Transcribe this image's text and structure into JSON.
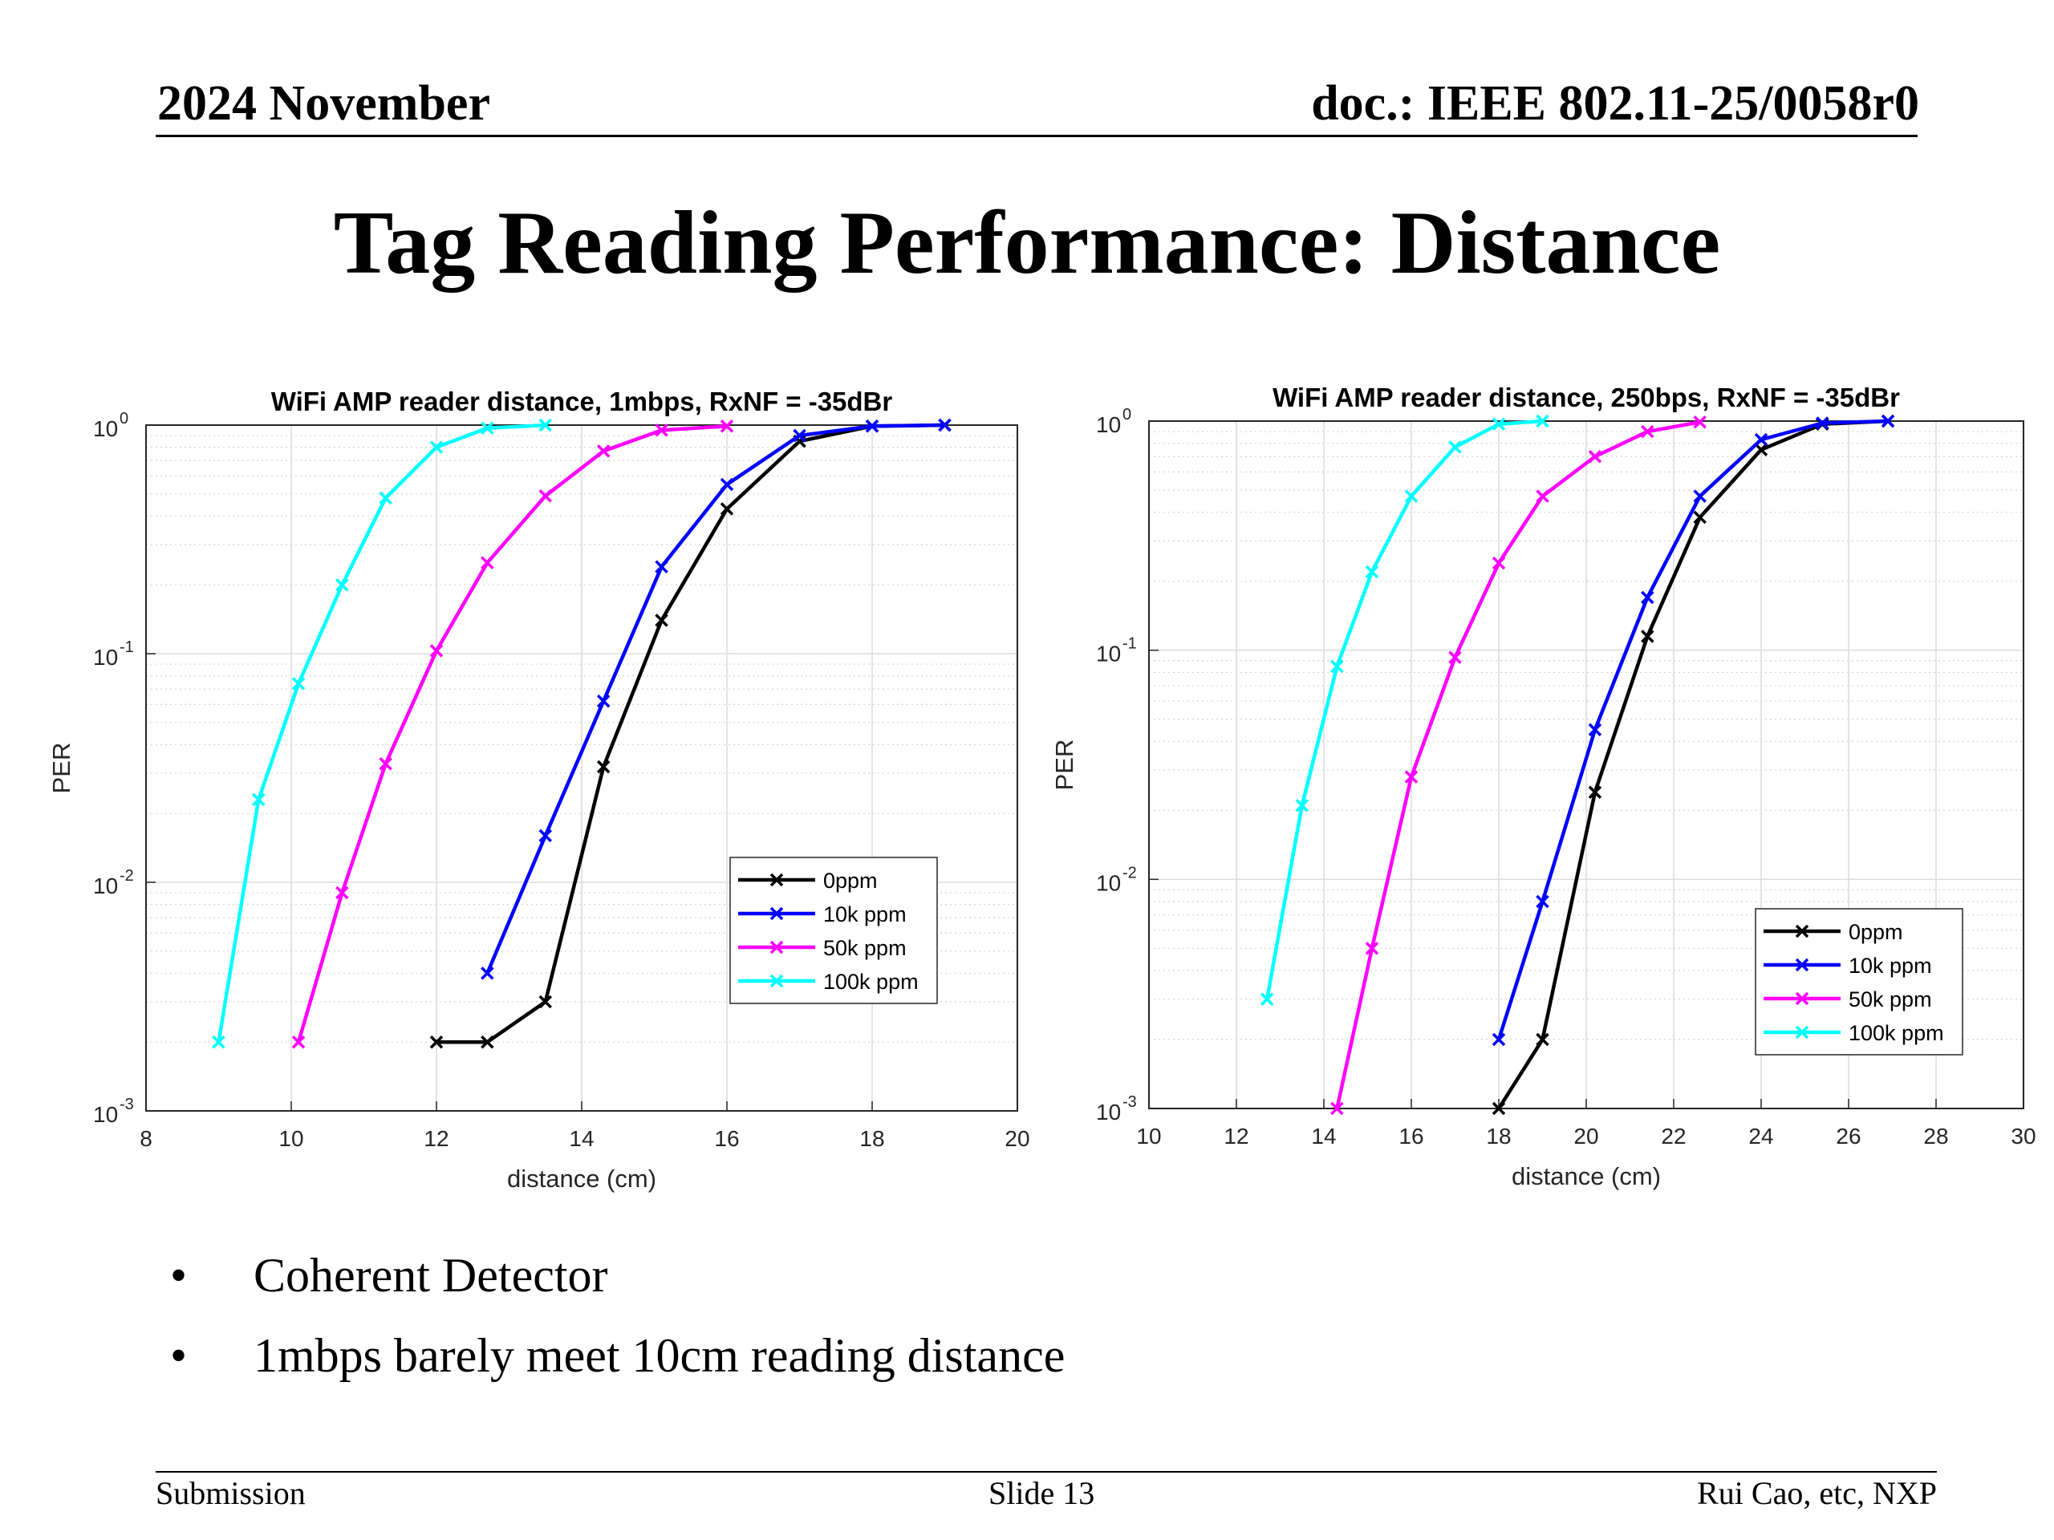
{
  "header": {
    "date": "2024 November",
    "doc": "doc.: IEEE 802.11-25/0058r0"
  },
  "title": "Tag Reading Performance: Distance",
  "chart_data": [
    {
      "type": "line",
      "title": "WiFi AMP reader distance, 1mbps, RxNF = -35dBr",
      "xlabel": "distance (cm)",
      "ylabel": "PER",
      "xlim": [
        8,
        20
      ],
      "ylim": [
        0.001,
        1
      ],
      "yscale": "log",
      "grid": true,
      "legend_position": "lower-right",
      "xticks": [
        "8",
        "10",
        "12",
        "14",
        "16",
        "18",
        "20"
      ],
      "yticks": [
        {
          "base": "10",
          "exp": "0"
        },
        {
          "base": "10",
          "exp": "-1"
        },
        {
          "base": "10",
          "exp": "-2"
        },
        {
          "base": "10",
          "exp": "-3"
        }
      ],
      "series": [
        {
          "name": "0ppm",
          "color": "#000000",
          "x": [
            12.0,
            12.7,
            13.5,
            14.3,
            15.1,
            16.0,
            17.0,
            18.0,
            19.0
          ],
          "y": [
            0.002,
            0.002,
            0.003,
            0.032,
            0.14,
            0.43,
            0.85,
            0.99,
            1.0
          ]
        },
        {
          "name": "10k ppm",
          "color": "#0000ff",
          "x": [
            12.7,
            13.5,
            14.3,
            15.1,
            16.0,
            17.0,
            18.0,
            19.0
          ],
          "y": [
            0.004,
            0.016,
            0.062,
            0.24,
            0.55,
            0.9,
            0.99,
            1.0
          ]
        },
        {
          "name": "50k ppm",
          "color": "#ff00ff",
          "x": [
            10.1,
            10.7,
            11.3,
            12.0,
            12.7,
            13.5,
            14.3,
            15.1,
            16.0
          ],
          "y": [
            0.002,
            0.009,
            0.033,
            0.103,
            0.25,
            0.49,
            0.77,
            0.95,
            0.99
          ]
        },
        {
          "name": "100k ppm",
          "color": "#00ffff",
          "x": [
            9.0,
            9.55,
            10.1,
            10.7,
            11.3,
            12.0,
            12.7,
            13.5
          ],
          "y": [
            0.002,
            0.023,
            0.074,
            0.2,
            0.48,
            0.8,
            0.97,
            1.0
          ]
        }
      ]
    },
    {
      "type": "line",
      "title": "WiFi AMP reader distance, 250bps, RxNF = -35dBr",
      "xlabel": "distance (cm)",
      "ylabel": "PER",
      "xlim": [
        10,
        30
      ],
      "ylim": [
        0.001,
        1
      ],
      "yscale": "log",
      "grid": true,
      "legend_position": "lower-right",
      "xticks": [
        "10",
        "12",
        "14",
        "16",
        "18",
        "20",
        "22",
        "24",
        "26",
        "28",
        "30"
      ],
      "yticks": [
        {
          "base": "10",
          "exp": "0"
        },
        {
          "base": "10",
          "exp": "-1"
        },
        {
          "base": "10",
          "exp": "-2"
        },
        {
          "base": "10",
          "exp": "-3"
        }
      ],
      "series": [
        {
          "name": "0ppm",
          "color": "#000000",
          "x": [
            18.0,
            19.0,
            20.2,
            21.4,
            22.6,
            24.0,
            25.4,
            26.9
          ],
          "y": [
            0.001,
            0.002,
            0.024,
            0.115,
            0.38,
            0.75,
            0.97,
            1.0
          ]
        },
        {
          "name": "10k ppm",
          "color": "#0000ff",
          "x": [
            18.0,
            19.0,
            20.2,
            21.4,
            22.6,
            24.0,
            25.4,
            26.9
          ],
          "y": [
            0.002,
            0.008,
            0.045,
            0.17,
            0.47,
            0.83,
            0.98,
            1.0
          ]
        },
        {
          "name": "50k ppm",
          "color": "#ff00ff",
          "x": [
            14.3,
            15.1,
            16.0,
            17.0,
            18.0,
            19.0,
            20.2,
            21.4,
            22.6
          ],
          "y": [
            0.001,
            0.005,
            0.028,
            0.093,
            0.24,
            0.47,
            0.7,
            0.9,
            0.99
          ]
        },
        {
          "name": "100k ppm",
          "color": "#00ffff",
          "x": [
            12.7,
            13.5,
            14.3,
            15.1,
            16.0,
            17.0,
            18.0,
            19.0
          ],
          "y": [
            0.003,
            0.021,
            0.085,
            0.22,
            0.47,
            0.77,
            0.97,
            1.0
          ]
        }
      ]
    }
  ],
  "bullets": [
    {
      "symbol": "•",
      "text": "Coherent Detector"
    },
    {
      "symbol": "•",
      "text": "1mbps barely meet 10cm reading distance"
    }
  ],
  "footer": {
    "left": "Submission",
    "center": "Slide 13",
    "right": "Rui Cao, etc, NXP"
  }
}
